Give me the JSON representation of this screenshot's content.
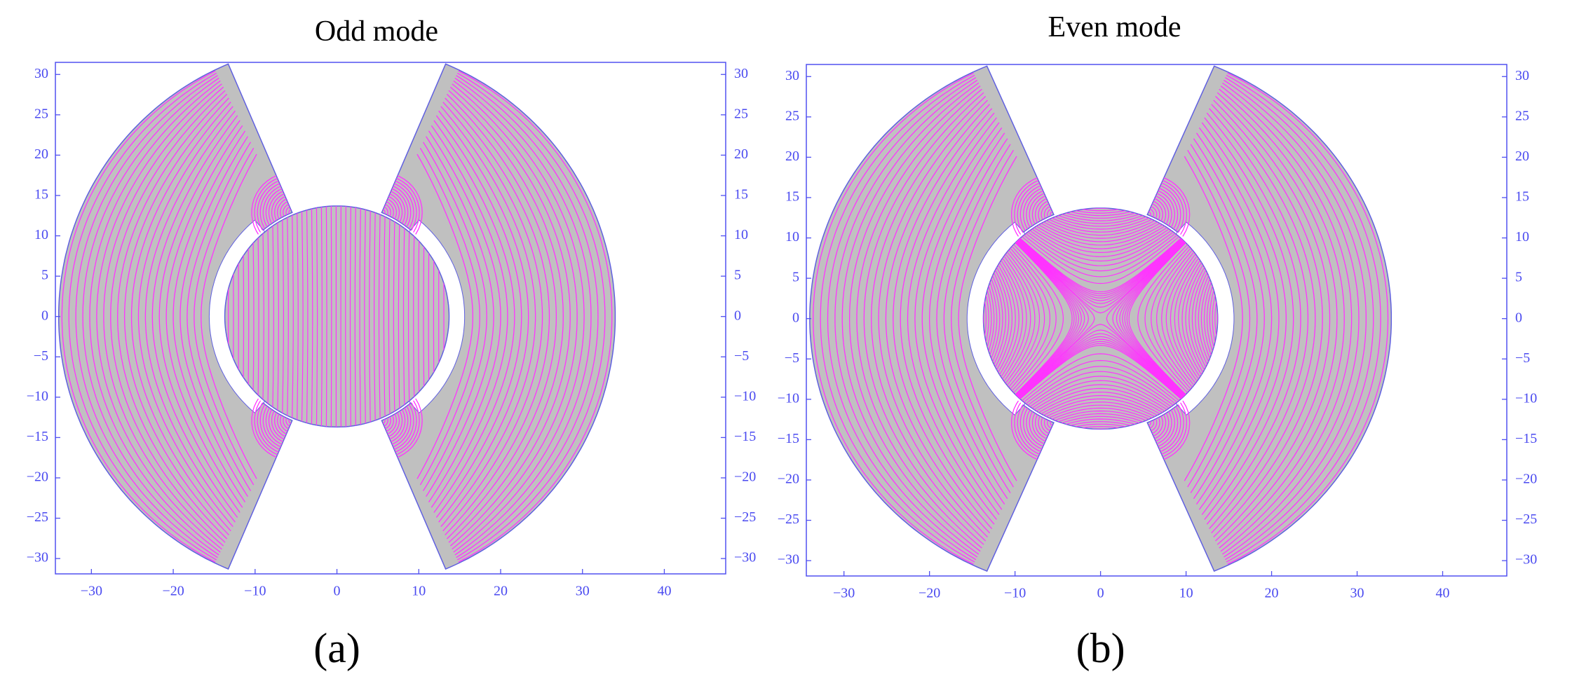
{
  "chart_data": [
    {
      "type": "field",
      "title": "Odd mode",
      "panel_label": "(a)",
      "xlim": [
        -34.4,
        47.5
      ],
      "ylim": [
        -31.9,
        31.5
      ],
      "xticks": [
        {
          "value": -30,
          "label": "−30"
        },
        {
          "value": -20,
          "label": "−20"
        },
        {
          "value": -10,
          "label": "−10"
        },
        0,
        10,
        20,
        30,
        40
      ],
      "yticks": [
        {
          "value": -30,
          "label": "−30"
        },
        {
          "value": -25,
          "label": "−25"
        },
        {
          "value": -20,
          "label": "−20"
        },
        {
          "value": -15,
          "label": "−15"
        },
        {
          "value": -10,
          "label": "−10"
        },
        {
          "value": -5,
          "label": "−5"
        },
        0,
        5,
        10,
        15,
        20,
        25,
        30
      ],
      "color": "#ff33ff"
    },
    {
      "type": "field",
      "title": "Even mode",
      "panel_label": "(b)",
      "xlim": [
        -34.4,
        47.5
      ],
      "ylim": [
        -31.9,
        31.5
      ],
      "xticks": [
        {
          "value": -30,
          "label": "−30"
        },
        {
          "value": -20,
          "label": "−20"
        },
        {
          "value": -10,
          "label": "−10"
        },
        0,
        10,
        20,
        30,
        40
      ],
      "yticks": [
        {
          "value": -30,
          "label": "−30"
        },
        {
          "value": -25,
          "label": "−25"
        },
        {
          "value": -20,
          "label": "−20"
        },
        {
          "value": -15,
          "label": "−15"
        },
        {
          "value": -10,
          "label": "−10"
        },
        {
          "value": -5,
          "label": "−5"
        },
        0,
        5,
        10,
        15,
        20,
        25,
        30
      ],
      "color": "#ff33ff"
    }
  ]
}
